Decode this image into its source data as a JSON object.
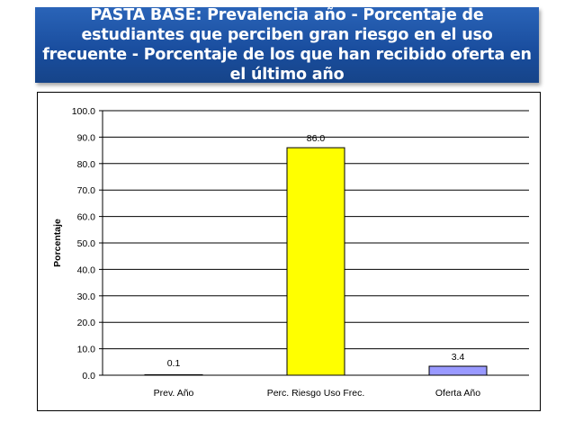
{
  "title": "PASTA BASE: Prevalencia año - Porcentaje de estudiantes que perciben gran riesgo en el uso frecuente  - Porcentaje de los que han recibido oferta en el último año",
  "chart_data": {
    "type": "bar",
    "categories": [
      "Prev. Año",
      "Perc. Riesgo Uso Frec.",
      "Oferta Año"
    ],
    "values": [
      0.1,
      86.0,
      3.4
    ],
    "data_labels": [
      "0.1",
      "86.0",
      "3.4"
    ],
    "bar_colors": [
      "#d9d9d9",
      "#ffff00",
      "#9999ff"
    ],
    "xlabel": "",
    "ylabel": "Porcentaje",
    "ylim": [
      0,
      100
    ],
    "yticks": [
      0,
      10,
      20,
      30,
      40,
      50,
      60,
      70,
      80,
      90,
      100
    ],
    "ytick_labels": [
      "0.0",
      "10.0",
      "20.0",
      "30.0",
      "40.0",
      "50.0",
      "60.0",
      "70.0",
      "80.0",
      "90.0",
      "100.0"
    ],
    "grid": true,
    "legend": "none"
  }
}
